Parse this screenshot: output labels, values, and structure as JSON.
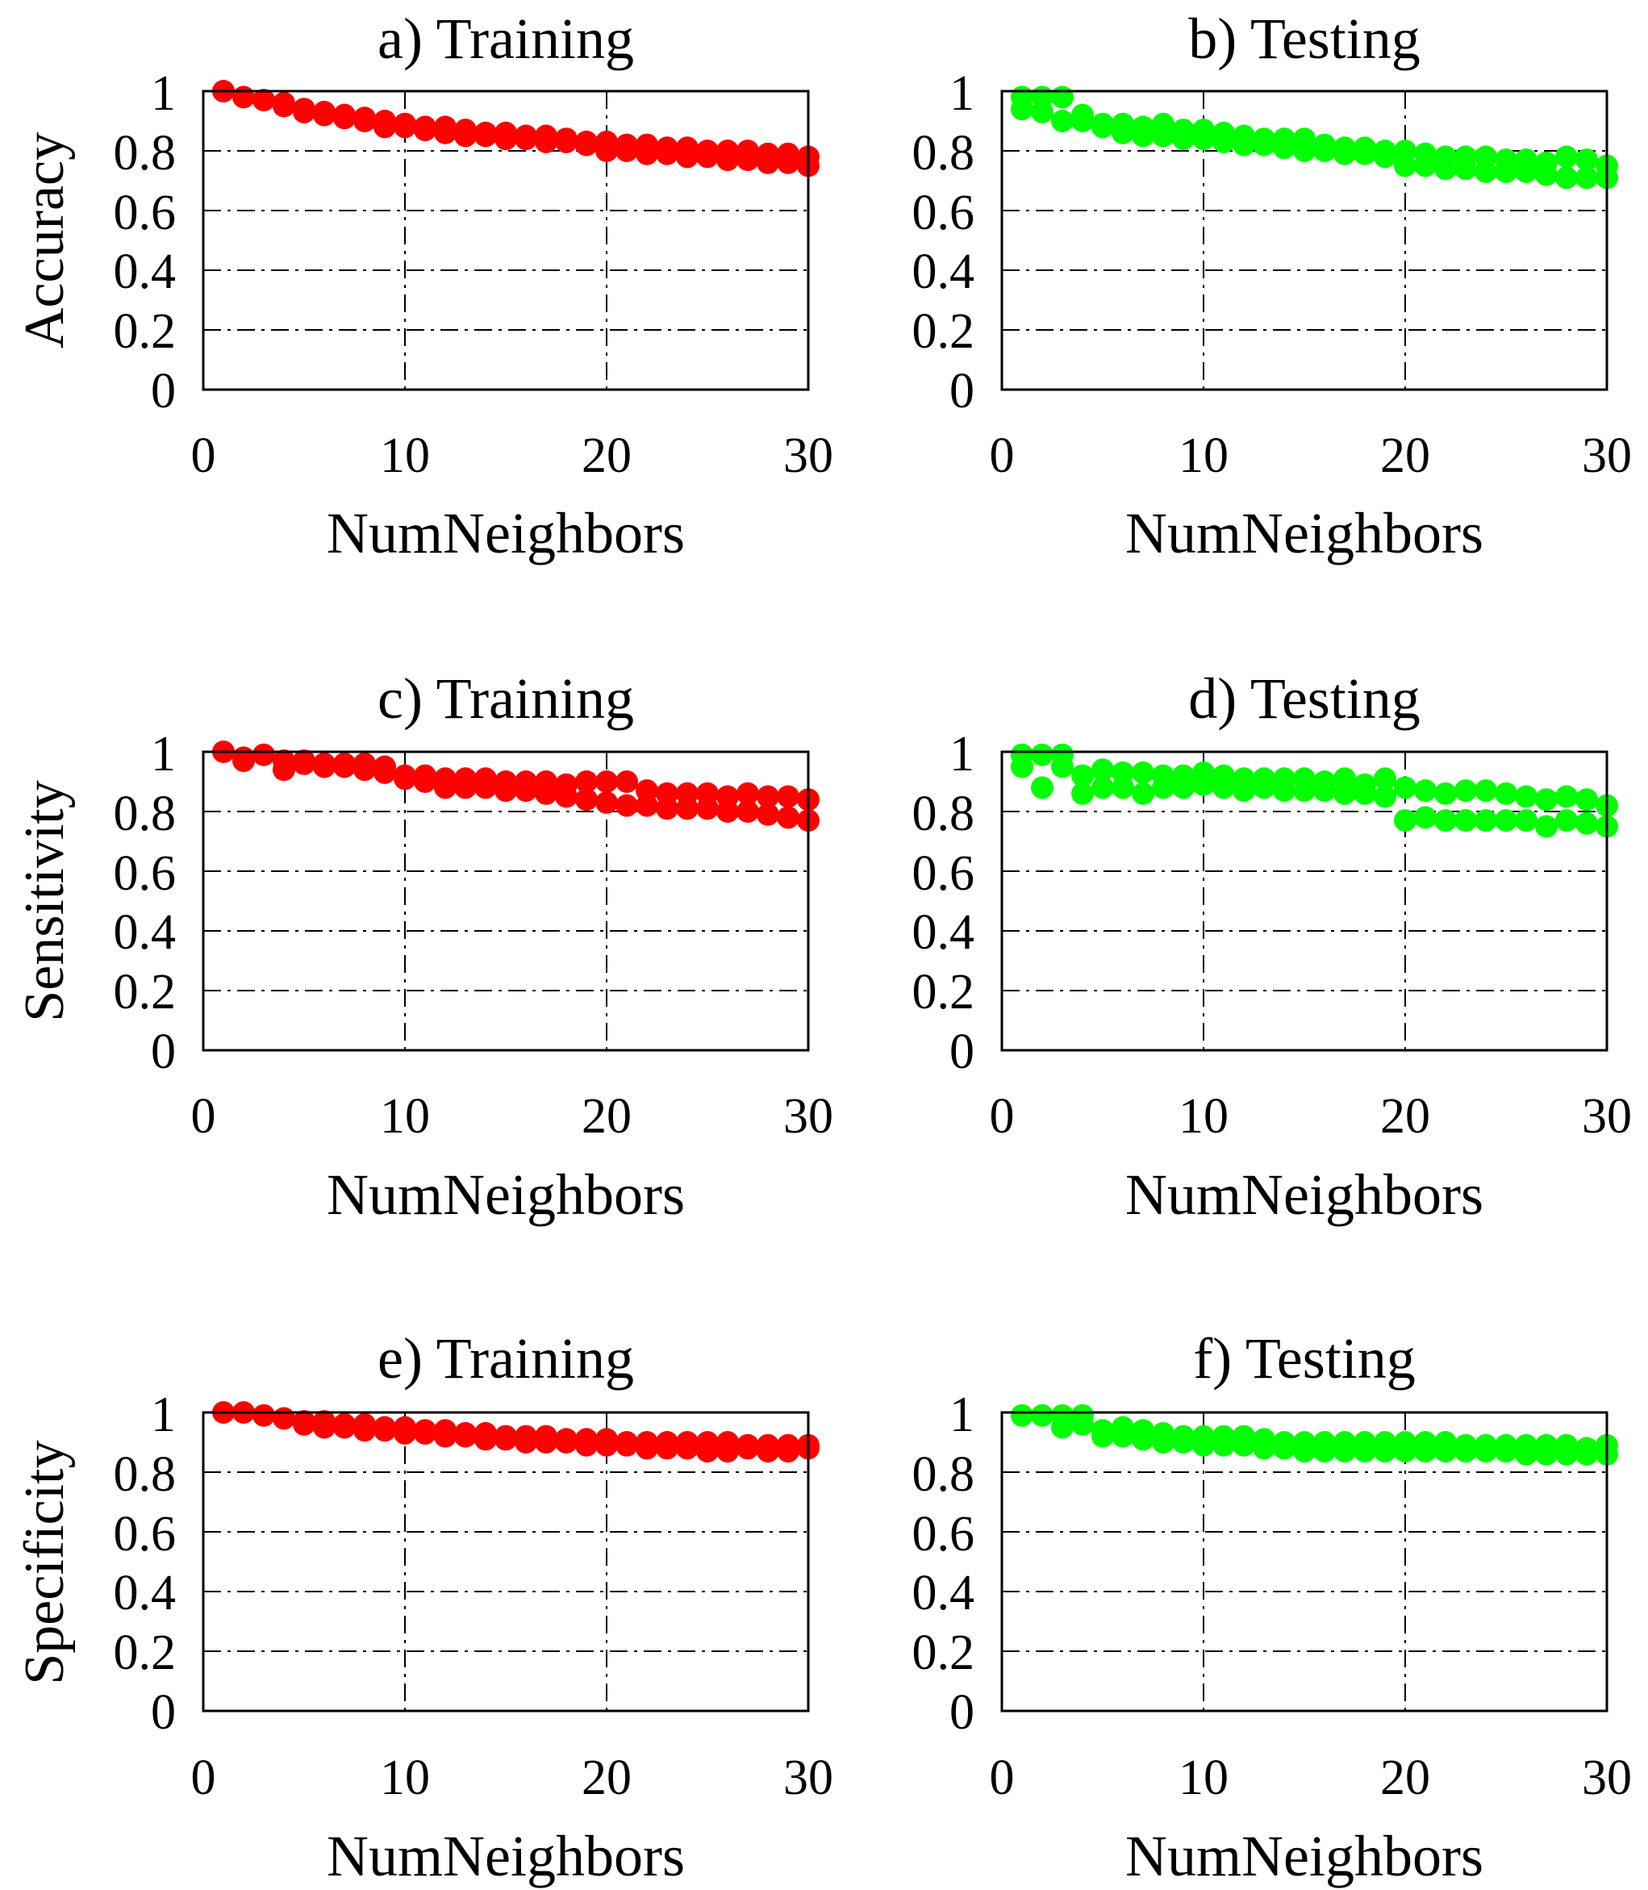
{
  "chart_data": [
    {
      "type": "scatter",
      "title": "a) Training",
      "xlabel": "NumNeighbors",
      "ylabel": "Accuracy",
      "xlim": [
        0,
        30
      ],
      "ylim": [
        0,
        1
      ],
      "xticks": [
        "0",
        "10",
        "20",
        "30"
      ],
      "yticks": [
        "0",
        "0.2",
        "0.4",
        "0.6",
        "0.8",
        "1"
      ],
      "grid": true,
      "color": "#ff0000",
      "series": [
        {
          "name": "upper",
          "x": [
            1,
            2,
            3,
            4,
            5,
            6,
            7,
            8,
            9,
            10,
            11,
            12,
            13,
            14,
            15,
            16,
            17,
            18,
            19,
            20,
            21,
            22,
            23,
            24,
            25,
            26,
            27,
            28,
            29,
            30
          ],
          "values": [
            1.0,
            0.98,
            0.97,
            0.96,
            0.94,
            0.93,
            0.92,
            0.91,
            0.9,
            0.89,
            0.88,
            0.88,
            0.87,
            0.86,
            0.86,
            0.85,
            0.85,
            0.84,
            0.83,
            0.83,
            0.82,
            0.82,
            0.81,
            0.81,
            0.8,
            0.8,
            0.8,
            0.79,
            0.79,
            0.78
          ]
        },
        {
          "name": "lower",
          "x": [
            4,
            5,
            6,
            7,
            8,
            9,
            10,
            11,
            12,
            13,
            14,
            15,
            16,
            17,
            18,
            19,
            20,
            21,
            22,
            23,
            24,
            25,
            26,
            27,
            28,
            29,
            30
          ],
          "values": [
            0.95,
            0.93,
            0.92,
            0.91,
            0.9,
            0.88,
            0.88,
            0.87,
            0.86,
            0.85,
            0.85,
            0.84,
            0.84,
            0.83,
            0.83,
            0.82,
            0.8,
            0.8,
            0.79,
            0.79,
            0.78,
            0.78,
            0.77,
            0.77,
            0.76,
            0.76,
            0.75
          ]
        }
      ]
    },
    {
      "type": "scatter",
      "title": "b) Testing",
      "xlabel": "NumNeighbors",
      "ylabel": "",
      "xlim": [
        0,
        30
      ],
      "ylim": [
        0,
        1
      ],
      "xticks": [
        "0",
        "10",
        "20",
        "30"
      ],
      "yticks": [
        "0",
        "0.2",
        "0.4",
        "0.6",
        "0.8",
        "1"
      ],
      "grid": true,
      "color": "#00ff00",
      "series": [
        {
          "name": "upper",
          "x": [
            1,
            2,
            3,
            4,
            5,
            6,
            7,
            8,
            9,
            10,
            11,
            12,
            13,
            14,
            15,
            16,
            17,
            18,
            19,
            20,
            21,
            22,
            23,
            24,
            25,
            26,
            27,
            28,
            29,
            30
          ],
          "values": [
            0.98,
            0.98,
            0.98,
            0.92,
            0.89,
            0.89,
            0.88,
            0.89,
            0.87,
            0.87,
            0.86,
            0.85,
            0.84,
            0.84,
            0.84,
            0.82,
            0.81,
            0.81,
            0.8,
            0.8,
            0.79,
            0.78,
            0.78,
            0.78,
            0.77,
            0.77,
            0.76,
            0.78,
            0.77,
            0.75
          ]
        },
        {
          "name": "lower",
          "x": [
            1,
            2,
            3,
            4,
            5,
            6,
            7,
            8,
            9,
            10,
            11,
            12,
            13,
            14,
            15,
            16,
            17,
            18,
            19,
            20,
            21,
            22,
            23,
            24,
            25,
            26,
            27,
            28,
            29,
            30
          ],
          "values": [
            0.94,
            0.93,
            0.9,
            0.9,
            0.88,
            0.86,
            0.85,
            0.85,
            0.84,
            0.84,
            0.83,
            0.82,
            0.82,
            0.81,
            0.8,
            0.8,
            0.79,
            0.79,
            0.78,
            0.75,
            0.75,
            0.74,
            0.74,
            0.73,
            0.73,
            0.73,
            0.72,
            0.71,
            0.71,
            0.71
          ]
        }
      ]
    },
    {
      "type": "scatter",
      "title": "c) Training",
      "xlabel": "NumNeighbors",
      "ylabel": "Sensitivity",
      "xlim": [
        0,
        30
      ],
      "ylim": [
        0,
        1
      ],
      "xticks": [
        "0",
        "10",
        "20",
        "30"
      ],
      "yticks": [
        "0",
        "0.2",
        "0.4",
        "0.6",
        "0.8",
        "1"
      ],
      "grid": true,
      "color": "#ff0000",
      "series": [
        {
          "name": "upper",
          "x": [
            1,
            2,
            3,
            4,
            5,
            6,
            7,
            8,
            9,
            10,
            11,
            12,
            13,
            14,
            15,
            16,
            17,
            18,
            19,
            20,
            21,
            22,
            23,
            24,
            25,
            26,
            27,
            28,
            29,
            30
          ],
          "values": [
            1.0,
            0.98,
            0.99,
            0.97,
            0.97,
            0.96,
            0.96,
            0.96,
            0.95,
            0.92,
            0.92,
            0.91,
            0.91,
            0.91,
            0.9,
            0.9,
            0.9,
            0.89,
            0.9,
            0.9,
            0.9,
            0.87,
            0.86,
            0.86,
            0.86,
            0.85,
            0.86,
            0.85,
            0.85,
            0.84
          ]
        },
        {
          "name": "lower",
          "x": [
            2,
            4,
            5,
            6,
            7,
            8,
            9,
            10,
            11,
            12,
            13,
            14,
            15,
            16,
            17,
            18,
            19,
            20,
            21,
            22,
            23,
            24,
            25,
            26,
            27,
            28,
            29,
            30
          ],
          "values": [
            0.97,
            0.94,
            0.96,
            0.95,
            0.95,
            0.94,
            0.93,
            0.91,
            0.9,
            0.88,
            0.88,
            0.88,
            0.87,
            0.87,
            0.86,
            0.85,
            0.84,
            0.83,
            0.82,
            0.82,
            0.81,
            0.81,
            0.81,
            0.8,
            0.8,
            0.79,
            0.78,
            0.77
          ]
        }
      ]
    },
    {
      "type": "scatter",
      "title": "d) Testing",
      "xlabel": "NumNeighbors",
      "ylabel": "",
      "xlim": [
        0,
        30
      ],
      "ylim": [
        0,
        1
      ],
      "xticks": [
        "0",
        "10",
        "20",
        "30"
      ],
      "yticks": [
        "0",
        "0.2",
        "0.4",
        "0.6",
        "0.8",
        "1"
      ],
      "grid": true,
      "color": "#00ff00",
      "series": [
        {
          "name": "upper",
          "x": [
            1,
            2,
            3,
            4,
            5,
            6,
            7,
            8,
            9,
            10,
            11,
            12,
            13,
            14,
            15,
            16,
            17,
            18,
            19,
            20,
            21,
            22,
            23,
            24,
            25,
            26,
            27,
            28,
            29,
            30
          ],
          "values": [
            0.99,
            0.99,
            0.99,
            0.92,
            0.94,
            0.93,
            0.93,
            0.92,
            0.92,
            0.93,
            0.92,
            0.91,
            0.91,
            0.91,
            0.91,
            0.9,
            0.91,
            0.89,
            0.91,
            0.88,
            0.87,
            0.86,
            0.87,
            0.87,
            0.86,
            0.85,
            0.84,
            0.85,
            0.84,
            0.82
          ]
        },
        {
          "name": "lower",
          "x": [
            1,
            2,
            3,
            4,
            5,
            6,
            7,
            8,
            9,
            10,
            11,
            12,
            13,
            14,
            15,
            16,
            17,
            18,
            19,
            20,
            21,
            22,
            23,
            24,
            25,
            26,
            27,
            28,
            29,
            30
          ],
          "values": [
            0.95,
            0.88,
            0.95,
            0.86,
            0.88,
            0.88,
            0.86,
            0.88,
            0.88,
            0.89,
            0.88,
            0.87,
            0.88,
            0.87,
            0.87,
            0.87,
            0.86,
            0.86,
            0.85,
            0.77,
            0.78,
            0.77,
            0.77,
            0.77,
            0.77,
            0.77,
            0.75,
            0.77,
            0.76,
            0.75
          ]
        }
      ]
    },
    {
      "type": "scatter",
      "title": "e) Training",
      "xlabel": "NumNeighbors",
      "ylabel": "Specificity",
      "xlim": [
        0,
        30
      ],
      "ylim": [
        0,
        1
      ],
      "xticks": [
        "0",
        "10",
        "20",
        "30"
      ],
      "yticks": [
        "0",
        "0.2",
        "0.4",
        "0.6",
        "0.8",
        "1"
      ],
      "grid": true,
      "color": "#ff0000",
      "series": [
        {
          "name": "upper",
          "x": [
            1,
            2,
            3,
            4,
            5,
            6,
            7,
            8,
            9,
            10,
            11,
            12,
            13,
            14,
            15,
            16,
            17,
            18,
            19,
            20,
            21,
            22,
            23,
            24,
            25,
            26,
            27,
            28,
            29,
            30
          ],
          "values": [
            1.0,
            1.0,
            0.99,
            0.98,
            0.97,
            0.97,
            0.96,
            0.96,
            0.95,
            0.95,
            0.94,
            0.94,
            0.93,
            0.93,
            0.92,
            0.92,
            0.92,
            0.91,
            0.91,
            0.91,
            0.9,
            0.9,
            0.9,
            0.9,
            0.9,
            0.9,
            0.89,
            0.89,
            0.89,
            0.89
          ]
        },
        {
          "name": "lower",
          "x": [
            5,
            6,
            7,
            8,
            9,
            10,
            11,
            12,
            13,
            14,
            15,
            16,
            17,
            18,
            19,
            20,
            21,
            22,
            23,
            24,
            25,
            26,
            27,
            28,
            29,
            30
          ],
          "values": [
            0.96,
            0.95,
            0.95,
            0.94,
            0.94,
            0.93,
            0.93,
            0.92,
            0.92,
            0.91,
            0.91,
            0.9,
            0.9,
            0.9,
            0.89,
            0.89,
            0.89,
            0.88,
            0.88,
            0.88,
            0.87,
            0.87,
            0.88,
            0.87,
            0.87,
            0.88
          ]
        }
      ]
    },
    {
      "type": "scatter",
      "title": "f) Testing",
      "xlabel": "NumNeighbors",
      "ylabel": "",
      "xlim": [
        0,
        30
      ],
      "ylim": [
        0,
        1
      ],
      "xticks": [
        "0",
        "10",
        "20",
        "30"
      ],
      "yticks": [
        "0",
        "0.2",
        "0.4",
        "0.6",
        "0.8",
        "1"
      ],
      "grid": true,
      "color": "#00ff00",
      "series": [
        {
          "name": "upper",
          "x": [
            1,
            2,
            3,
            4,
            5,
            6,
            7,
            8,
            9,
            10,
            11,
            12,
            13,
            14,
            15,
            16,
            17,
            18,
            19,
            20,
            21,
            22,
            23,
            24,
            25,
            26,
            27,
            28,
            29,
            30
          ],
          "values": [
            0.99,
            0.99,
            0.99,
            0.99,
            0.94,
            0.95,
            0.94,
            0.93,
            0.92,
            0.92,
            0.92,
            0.92,
            0.91,
            0.9,
            0.9,
            0.9,
            0.9,
            0.9,
            0.9,
            0.9,
            0.9,
            0.9,
            0.89,
            0.89,
            0.89,
            0.89,
            0.89,
            0.89,
            0.88,
            0.89
          ]
        },
        {
          "name": "lower",
          "x": [
            3,
            4,
            5,
            6,
            7,
            8,
            9,
            10,
            11,
            12,
            13,
            14,
            15,
            16,
            17,
            18,
            19,
            20,
            21,
            22,
            23,
            24,
            25,
            26,
            27,
            28,
            29,
            30
          ],
          "values": [
            0.95,
            0.96,
            0.92,
            0.92,
            0.91,
            0.9,
            0.9,
            0.89,
            0.89,
            0.89,
            0.88,
            0.88,
            0.87,
            0.87,
            0.87,
            0.87,
            0.87,
            0.87,
            0.87,
            0.87,
            0.87,
            0.87,
            0.87,
            0.86,
            0.86,
            0.86,
            0.86,
            0.86
          ]
        }
      ]
    }
  ]
}
